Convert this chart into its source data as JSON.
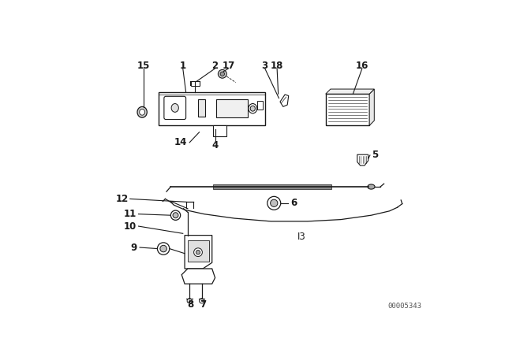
{
  "bg_color": "#ffffff",
  "diagram_color": "#1a1a1a",
  "watermark": "00005343",
  "label_fontsize": 8.5,
  "label_fontsize_bold": true
}
